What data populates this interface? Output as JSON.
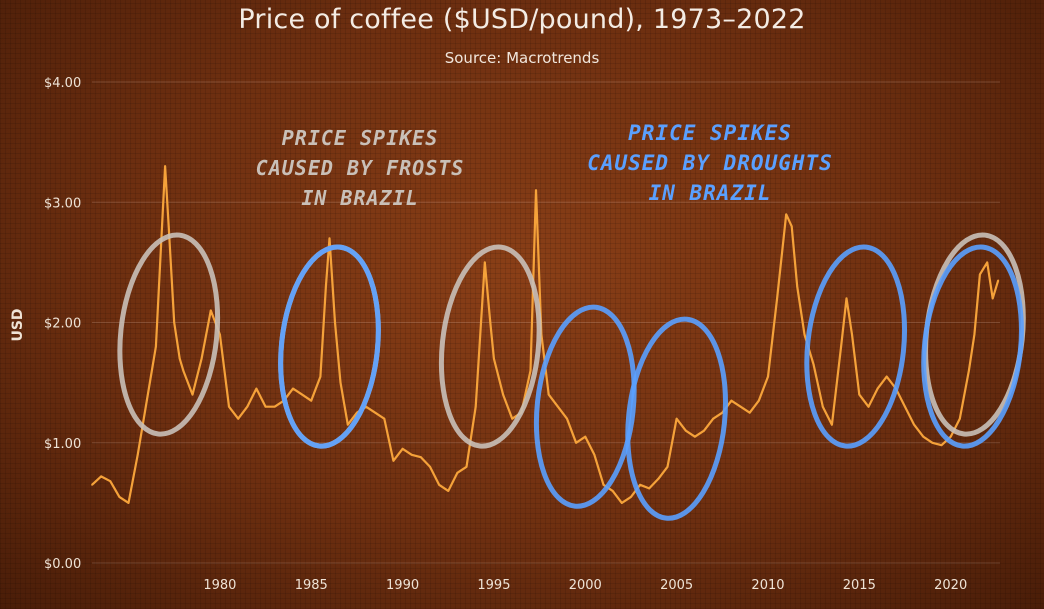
{
  "chart_data": {
    "type": "line",
    "title": "Price of coffee ($USD/pound), 1973–2022",
    "subtitle": "Source: Macrotrends",
    "ylabel": "USD",
    "xlabel": "",
    "xlim": [
      1973,
      2022.7
    ],
    "ylim": [
      0,
      4
    ],
    "x_ticks": [
      1980,
      1985,
      1990,
      1995,
      2000,
      2005,
      2010,
      2015,
      2020
    ],
    "y_ticks": [
      {
        "value": 0,
        "label": "$0.00"
      },
      {
        "value": 1,
        "label": "$1.00"
      },
      {
        "value": 2,
        "label": "$2.00"
      },
      {
        "value": 3,
        "label": "$3.00"
      },
      {
        "value": 4,
        "label": "$4.00"
      }
    ],
    "grid": true,
    "line_color": "#f5a23a",
    "series": [
      {
        "x": [
          1973.0,
          1973.5,
          1974.0,
          1974.5,
          1975.0,
          1975.5,
          1976.0,
          1976.5,
          1977.0,
          1977.2,
          1977.5,
          1977.8,
          1978.0,
          1978.5,
          1979.0,
          1979.5,
          1980.0,
          1980.5,
          1981.0,
          1981.5,
          1982.0,
          1982.5,
          1983.0,
          1983.5,
          1984.0,
          1984.5,
          1985.0,
          1985.5,
          1985.8,
          1986.0,
          1986.3,
          1986.6,
          1987.0,
          1987.5,
          1988.0,
          1988.5,
          1989.0,
          1989.5,
          1990.0,
          1990.5,
          1991.0,
          1991.5,
          1992.0,
          1992.5,
          1993.0,
          1993.5,
          1994.0,
          1994.5,
          1994.8,
          1995.0,
          1995.5,
          1996.0,
          1996.5,
          1997.0,
          1997.3,
          1997.6,
          1998.0,
          1998.5,
          1999.0,
          1999.5,
          2000.0,
          2000.5,
          2001.0,
          2001.5,
          2002.0,
          2002.5,
          2003.0,
          2003.5,
          2004.0,
          2004.5,
          2005.0,
          2005.5,
          2006.0,
          2006.5,
          2007.0,
          2007.5,
          2008.0,
          2008.5,
          2009.0,
          2009.5,
          2010.0,
          2010.5,
          2011.0,
          2011.3,
          2011.6,
          2012.0,
          2012.5,
          2013.0,
          2013.5,
          2014.0,
          2014.3,
          2014.6,
          2015.0,
          2015.5,
          2016.0,
          2016.5,
          2017.0,
          2017.5,
          2018.0,
          2018.5,
          2019.0,
          2019.5,
          2020.0,
          2020.5,
          2021.0,
          2021.3,
          2021.6,
          2022.0,
          2022.3,
          2022.6
        ],
        "values": [
          0.65,
          0.72,
          0.68,
          0.55,
          0.5,
          0.9,
          1.35,
          1.8,
          3.3,
          2.8,
          2.0,
          1.7,
          1.6,
          1.4,
          1.7,
          2.1,
          1.9,
          1.3,
          1.2,
          1.3,
          1.45,
          1.3,
          1.3,
          1.35,
          1.45,
          1.4,
          1.35,
          1.55,
          2.3,
          2.7,
          2.0,
          1.5,
          1.15,
          1.25,
          1.3,
          1.25,
          1.2,
          0.85,
          0.95,
          0.9,
          0.88,
          0.8,
          0.65,
          0.6,
          0.75,
          0.8,
          1.3,
          2.5,
          2.0,
          1.7,
          1.4,
          1.2,
          1.25,
          1.6,
          3.1,
          1.9,
          1.4,
          1.3,
          1.2,
          1.0,
          1.05,
          0.9,
          0.65,
          0.6,
          0.5,
          0.55,
          0.65,
          0.62,
          0.7,
          0.8,
          1.2,
          1.1,
          1.05,
          1.1,
          1.2,
          1.25,
          1.35,
          1.3,
          1.25,
          1.35,
          1.55,
          2.2,
          2.9,
          2.8,
          2.3,
          1.9,
          1.65,
          1.3,
          1.15,
          1.8,
          2.2,
          1.9,
          1.4,
          1.3,
          1.45,
          1.55,
          1.45,
          1.3,
          1.15,
          1.05,
          1.0,
          0.98,
          1.05,
          1.2,
          1.6,
          1.9,
          2.4,
          2.5,
          2.2,
          2.35
        ]
      }
    ],
    "annotations": [
      {
        "text_lines": [
          "PRICE SPIKES",
          "CAUSED BY FROSTS",
          "IN BRAZIL"
        ],
        "color": "#c9c0b8"
      },
      {
        "text_lines": [
          "PRICE SPIKES",
          "CAUSED BY DROUGHTS",
          "IN BRAZIL"
        ],
        "color": "#5aa0ff"
      }
    ],
    "circled_periods": {
      "frost": [
        [
          1977.2,
          1.9
        ],
        [
          1986.0,
          1.8
        ],
        [
          1994.8,
          1.8
        ],
        [
          2021.3,
          1.9
        ]
      ],
      "drought": [
        [
          1986.0,
          1.8
        ],
        [
          2000.0,
          1.3
        ],
        [
          2005.0,
          1.2
        ],
        [
          2014.8,
          1.8
        ],
        [
          2021.2,
          1.8
        ]
      ]
    },
    "marker_colors": {
      "frost": "#c9c0b8",
      "drought": "#5aa0ff"
    }
  }
}
